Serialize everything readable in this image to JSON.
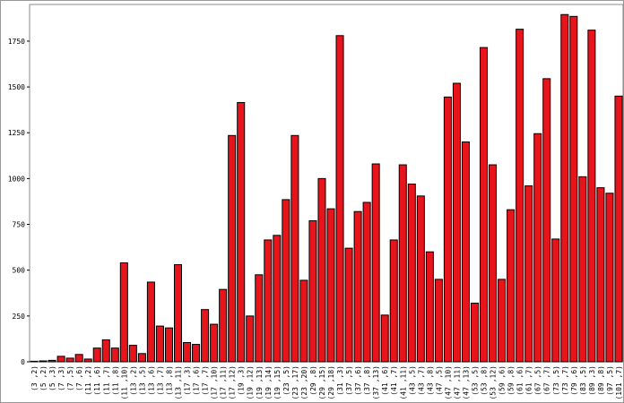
{
  "chart_data": {
    "type": "bar",
    "categories": [
      "(3 ,2)",
      "(5 ,2)",
      "(5 ,3)",
      "(7 ,3)",
      "(7 ,5)",
      "(7 ,6)",
      "(11 ,2)",
      "(11 ,6)",
      "(11 ,7)",
      "(11 ,8)",
      "(11 ,10)",
      "(13 ,2)",
      "(13 ,5)",
      "(13 ,6)",
      "(13 ,7)",
      "(13 ,8)",
      "(13 ,11)",
      "(17 ,3)",
      "(17 ,6)",
      "(17 ,7)",
      "(17 ,10)",
      "(17 ,11)",
      "(17 ,12)",
      "(19 ,3)",
      "(19 ,12)",
      "(19 ,13)",
      "(19 ,14)",
      "(19 ,15)",
      "(23 ,5)",
      "(23 ,17)",
      "(23 ,20)",
      "(29 ,8)",
      "(29 ,15)",
      "(29 ,18)",
      "(31 ,3)",
      "(37 ,5)",
      "(37 ,6)",
      "(37 ,8)",
      "(37 ,13)",
      "(41 ,6)",
      "(41 ,7)",
      "(41 ,11)",
      "(43 ,5)",
      "(43 ,7)",
      "(43 ,8)",
      "(47 ,5)",
      "(47 ,10)",
      "(47 ,11)",
      "(47 ,13)",
      "(53 ,5)",
      "(53 ,8)",
      "(53 ,12)",
      "(59 ,6)",
      "(59 ,8)",
      "(61 ,6)",
      "(61 ,7)",
      "(67 ,5)",
      "(67 ,7)",
      "(73 ,5)",
      "(73 ,7)",
      "(79 ,6)",
      "(83 ,5)",
      "(89 ,3)",
      "(89 ,8)",
      "(97 ,5)",
      "(101 ,7)"
    ],
    "values": [
      3,
      5,
      8,
      30,
      20,
      40,
      15,
      75,
      120,
      75,
      540,
      90,
      45,
      435,
      195,
      185,
      530,
      105,
      95,
      285,
      205,
      395,
      1235,
      1415,
      250,
      475,
      665,
      690,
      885,
      1235,
      445,
      770,
      1000,
      835,
      1780,
      620,
      820,
      870,
      1080,
      255,
      665,
      1075,
      970,
      905,
      600,
      450,
      1445,
      1520,
      1200,
      320,
      1715,
      1075,
      450,
      830,
      1815,
      960,
      1245,
      1545,
      670,
      1895,
      1885,
      1010,
      1810,
      950,
      920,
      1450
    ],
    "color": "#e8141c",
    "ylim": [
      0,
      1950
    ],
    "yticks": [
      0,
      250,
      500,
      750,
      1000,
      1250,
      1500,
      1750
    ]
  }
}
